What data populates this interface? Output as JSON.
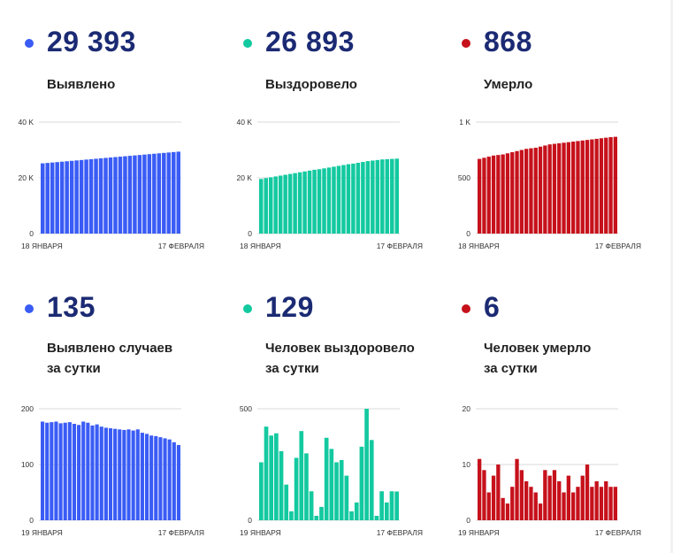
{
  "colors": {
    "blue": "#3a5cf5",
    "teal": "#13c9a0",
    "red": "#c6111b",
    "title": "#1b2a73",
    "grid": "#d9d9d9"
  },
  "panels": [
    {
      "value": "29 393",
      "label1": "Выявлено",
      "label2": "",
      "color": "#3a5cf5"
    },
    {
      "value": "26 893",
      "label1": "Выздоровело",
      "label2": "",
      "color": "#13c9a0"
    },
    {
      "value": "868",
      "label1": "Умерло",
      "label2": "",
      "color": "#c6111b"
    },
    {
      "value": "135",
      "label1": "Выявлено случаев",
      "label2": "за сутки",
      "color": "#3a5cf5"
    },
    {
      "value": "129",
      "label1": "Человек выздоровело",
      "label2": "за сутки",
      "color": "#13c9a0"
    },
    {
      "value": "6",
      "label1": "Человек умерло",
      "label2": "за сутки",
      "color": "#c6111b"
    }
  ],
  "chart_data": [
    {
      "type": "bar",
      "color": "#3a5cf5",
      "ylim": [
        0,
        40000
      ],
      "yticks": [
        0,
        20000,
        40000
      ],
      "ytick_labels": [
        "0",
        "20 K",
        "40 K"
      ],
      "x_start": "18 ЯНВАРЯ",
      "x_end": "17 ФЕВРАЛЯ",
      "values": [
        25200,
        25350,
        25500,
        25650,
        25800,
        25950,
        26100,
        26250,
        26400,
        26550,
        26700,
        26850,
        27000,
        27150,
        27300,
        27450,
        27600,
        27750,
        27900,
        28050,
        28200,
        28350,
        28500,
        28650,
        28800,
        28950,
        29100,
        29250,
        29393
      ]
    },
    {
      "type": "bar",
      "color": "#13c9a0",
      "ylim": [
        0,
        40000
      ],
      "yticks": [
        0,
        20000,
        40000
      ],
      "ytick_labels": [
        "0",
        "20 K",
        "40 K"
      ],
      "x_start": "18 ЯНВАРЯ",
      "x_end": "17 ФЕВРАЛЯ",
      "values": [
        19600,
        19900,
        20200,
        20500,
        20800,
        21100,
        21400,
        21700,
        22000,
        22300,
        22600,
        22900,
        23100,
        23400,
        23700,
        24000,
        24300,
        24600,
        24900,
        25100,
        25400,
        25700,
        26000,
        26200,
        26400,
        26600,
        26700,
        26800,
        26893
      ]
    },
    {
      "type": "bar",
      "color": "#c6111b",
      "ylim": [
        0,
        1000
      ],
      "yticks": [
        0,
        500,
        1000
      ],
      "ytick_labels": [
        "0",
        "500",
        "1 K"
      ],
      "x_start": "18 ЯНВАРЯ",
      "x_end": "17 ФЕВРАЛЯ",
      "values": [
        670,
        680,
        690,
        700,
        705,
        710,
        720,
        730,
        740,
        750,
        760,
        765,
        770,
        780,
        790,
        800,
        805,
        810,
        815,
        820,
        825,
        830,
        835,
        840,
        845,
        850,
        855,
        860,
        865,
        868
      ]
    },
    {
      "type": "bar",
      "color": "#3a5cf5",
      "ylim": [
        0,
        200
      ],
      "yticks": [
        0,
        100,
        200
      ],
      "ytick_labels": [
        "0",
        "100",
        "200"
      ],
      "x_start": "19 ЯНВАРЯ",
      "x_end": "17 ФЕВРАЛЯ",
      "values": [
        177,
        175,
        176,
        177,
        174,
        175,
        176,
        173,
        171,
        177,
        175,
        170,
        172,
        168,
        166,
        165,
        164,
        163,
        162,
        163,
        161,
        163,
        157,
        155,
        152,
        151,
        149,
        147,
        145,
        140,
        135
      ]
    },
    {
      "type": "bar",
      "color": "#13c9a0",
      "ylim": [
        0,
        500
      ],
      "yticks": [
        0,
        500
      ],
      "ytick_labels": [
        "0",
        "500"
      ],
      "x_start": "19 ЯНВАРЯ",
      "x_end": "17 ФЕВРАЛЯ",
      "values": [
        260,
        420,
        380,
        390,
        310,
        160,
        40,
        280,
        400,
        300,
        130,
        20,
        60,
        370,
        320,
        260,
        270,
        200,
        40,
        80,
        330,
        500,
        360,
        20,
        130,
        80,
        130,
        129
      ]
    },
    {
      "type": "bar",
      "color": "#c6111b",
      "ylim": [
        0,
        20
      ],
      "yticks": [
        0,
        10,
        20
      ],
      "ytick_labels": [
        "0",
        "10",
        "20"
      ],
      "x_start": "19 ЯНВАРЯ",
      "x_end": "17 ФЕВРАЛЯ",
      "values": [
        11,
        9,
        5,
        8,
        10,
        4,
        3,
        6,
        11,
        9,
        7,
        6,
        5,
        3,
        9,
        8,
        9,
        7,
        5,
        8,
        5,
        6,
        8,
        10,
        6,
        7,
        6,
        7,
        6,
        6
      ]
    }
  ]
}
